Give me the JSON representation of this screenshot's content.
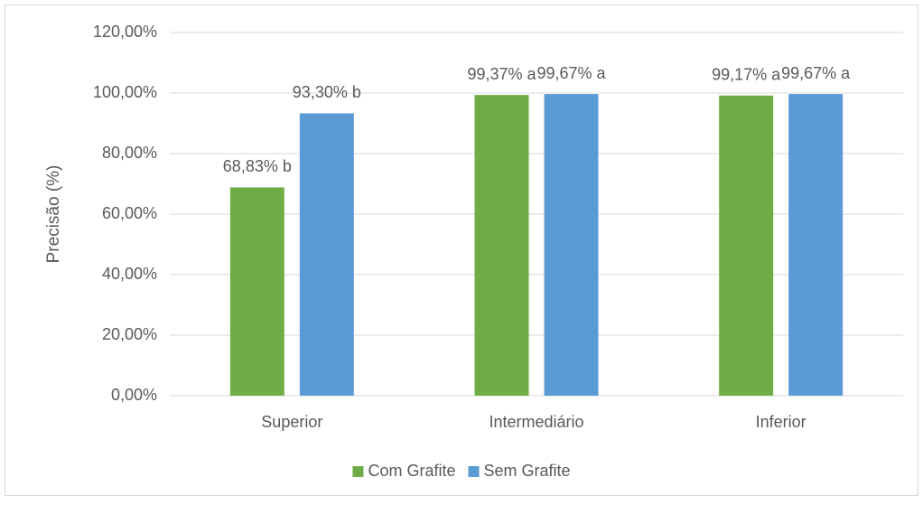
{
  "chart_data": {
    "type": "bar",
    "ylabel": "Precisão (%)",
    "categories": [
      "Superior",
      "Intermediário",
      "Inferior"
    ],
    "series": [
      {
        "name": "Com Grafite",
        "color": "#70ad47",
        "values": [
          68.83,
          99.37,
          99.17
        ],
        "value_labels": [
          "68,83% b",
          "99,37% a",
          "99,17% a"
        ]
      },
      {
        "name": "Sem Grafite",
        "color": "#5b9bd5",
        "values": [
          93.3,
          99.67,
          99.67
        ],
        "value_labels": [
          "93,30% b",
          "99,67% a",
          "99,67% a"
        ]
      }
    ],
    "ylim": [
      0,
      120
    ],
    "yticks": [
      {
        "value": 0,
        "label": "0,00%"
      },
      {
        "value": 20,
        "label": "20,00%"
      },
      {
        "value": 40,
        "label": "40,00%"
      },
      {
        "value": 60,
        "label": "60,00%"
      },
      {
        "value": 80,
        "label": "80,00%"
      },
      {
        "value": 100,
        "label": "100,00%"
      },
      {
        "value": 120,
        "label": "120,00%"
      }
    ],
    "grid": true,
    "legend": "bottom"
  }
}
